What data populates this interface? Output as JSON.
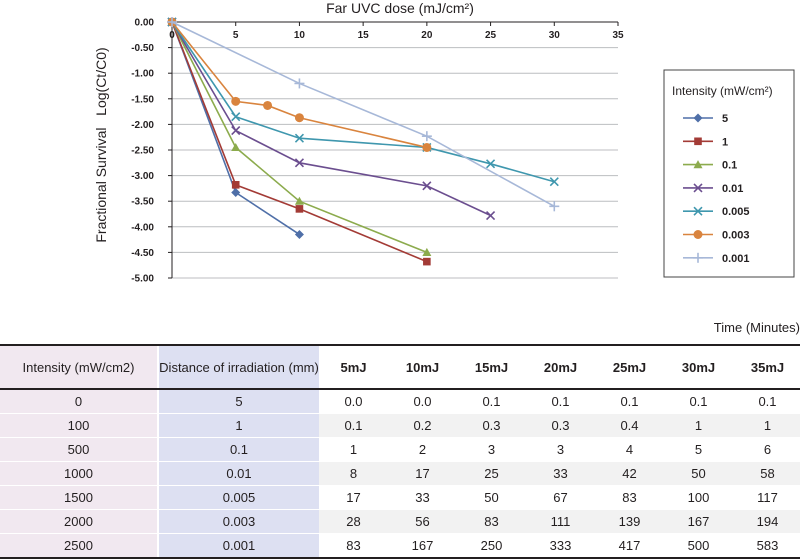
{
  "chart_data": {
    "type": "line",
    "title": "Far UVC dose (mJ/cm²)",
    "ylabel": "Fractional Survival   Log(Ct/C0)",
    "xlim": [
      0,
      35
    ],
    "ylim": [
      -5.0,
      0.0
    ],
    "x_ticks": [
      0,
      5,
      10,
      15,
      20,
      25,
      30,
      35
    ],
    "y_ticks": [
      0.0,
      -0.5,
      -1.0,
      -1.5,
      -2.0,
      -2.5,
      -3.0,
      -3.5,
      -4.0,
      -4.5,
      -5.0
    ],
    "x_tick_labels": [
      "0",
      "5",
      "10",
      "15",
      "20",
      "25",
      "30",
      "35"
    ],
    "y_tick_labels": [
      "0.00",
      "-0.50",
      "-1.00",
      "-1.50",
      "-2.00",
      "-2.50",
      "-3.00",
      "-3.50",
      "-4.00",
      "-4.50",
      "-5.00"
    ],
    "grid": "horizontal",
    "legend": {
      "title": "Intensity (mW/cm²)",
      "position": "right"
    },
    "series": [
      {
        "name": "5",
        "color": "#4f6fa8",
        "marker": "diamond",
        "x": [
          0,
          5,
          10
        ],
        "y": [
          0.0,
          -3.33,
          -4.15
        ]
      },
      {
        "name": "1",
        "color": "#a33b36",
        "marker": "square",
        "x": [
          0,
          5,
          10,
          20
        ],
        "y": [
          0.0,
          -3.18,
          -3.65,
          -4.68
        ]
      },
      {
        "name": "0.1",
        "color": "#8cab4d",
        "marker": "triangle",
        "x": [
          0,
          5,
          10,
          20
        ],
        "y": [
          0.0,
          -2.45,
          -3.5,
          -4.5
        ]
      },
      {
        "name": "0.01",
        "color": "#6b4e8f",
        "marker": "x",
        "x": [
          0,
          5,
          10,
          20,
          25
        ],
        "y": [
          0.0,
          -2.12,
          -2.75,
          -3.2,
          -3.78
        ]
      },
      {
        "name": "0.005",
        "color": "#3f97ae",
        "marker": "x",
        "x": [
          0,
          5,
          10,
          20,
          25,
          30
        ],
        "y": [
          0.0,
          -1.85,
          -2.27,
          -2.45,
          -2.77,
          -3.12
        ]
      },
      {
        "name": "0.003",
        "color": "#d9843e",
        "marker": "circle",
        "x": [
          0,
          5,
          7.5,
          10,
          20
        ],
        "y": [
          0.0,
          -1.55,
          -1.63,
          -1.87,
          -2.45
        ]
      },
      {
        "name": "0.001",
        "color": "#a7b8d8",
        "marker": "plus",
        "x": [
          0,
          10,
          20,
          30
        ],
        "y": [
          0.0,
          -1.2,
          -2.23,
          -3.6
        ]
      }
    ]
  },
  "table": {
    "time_label": "Time (Minutes)",
    "headers": [
      "Intensity (mW/cm2)",
      "Distance of irradiation (mm)",
      "5mJ",
      "10mJ",
      "15mJ",
      "20mJ",
      "25mJ",
      "30mJ",
      "35mJ"
    ],
    "rows": [
      [
        "0",
        "5",
        "0.0",
        "0.0",
        "0.1",
        "0.1",
        "0.1",
        "0.1",
        "0.1"
      ],
      [
        "100",
        "1",
        "0.1",
        "0.2",
        "0.3",
        "0.3",
        "0.4",
        "1",
        "1"
      ],
      [
        "500",
        "0.1",
        "1",
        "2",
        "3",
        "3",
        "4",
        "5",
        "6"
      ],
      [
        "1000",
        "0.01",
        "8",
        "17",
        "25",
        "33",
        "42",
        "50",
        "58"
      ],
      [
        "1500",
        "0.005",
        "17",
        "33",
        "50",
        "67",
        "83",
        "100",
        "117"
      ],
      [
        "2000",
        "0.003",
        "28",
        "56",
        "83",
        "111",
        "139",
        "167",
        "194"
      ],
      [
        "2500",
        "0.001",
        "83",
        "167",
        "250",
        "333",
        "417",
        "500",
        "583"
      ]
    ]
  }
}
